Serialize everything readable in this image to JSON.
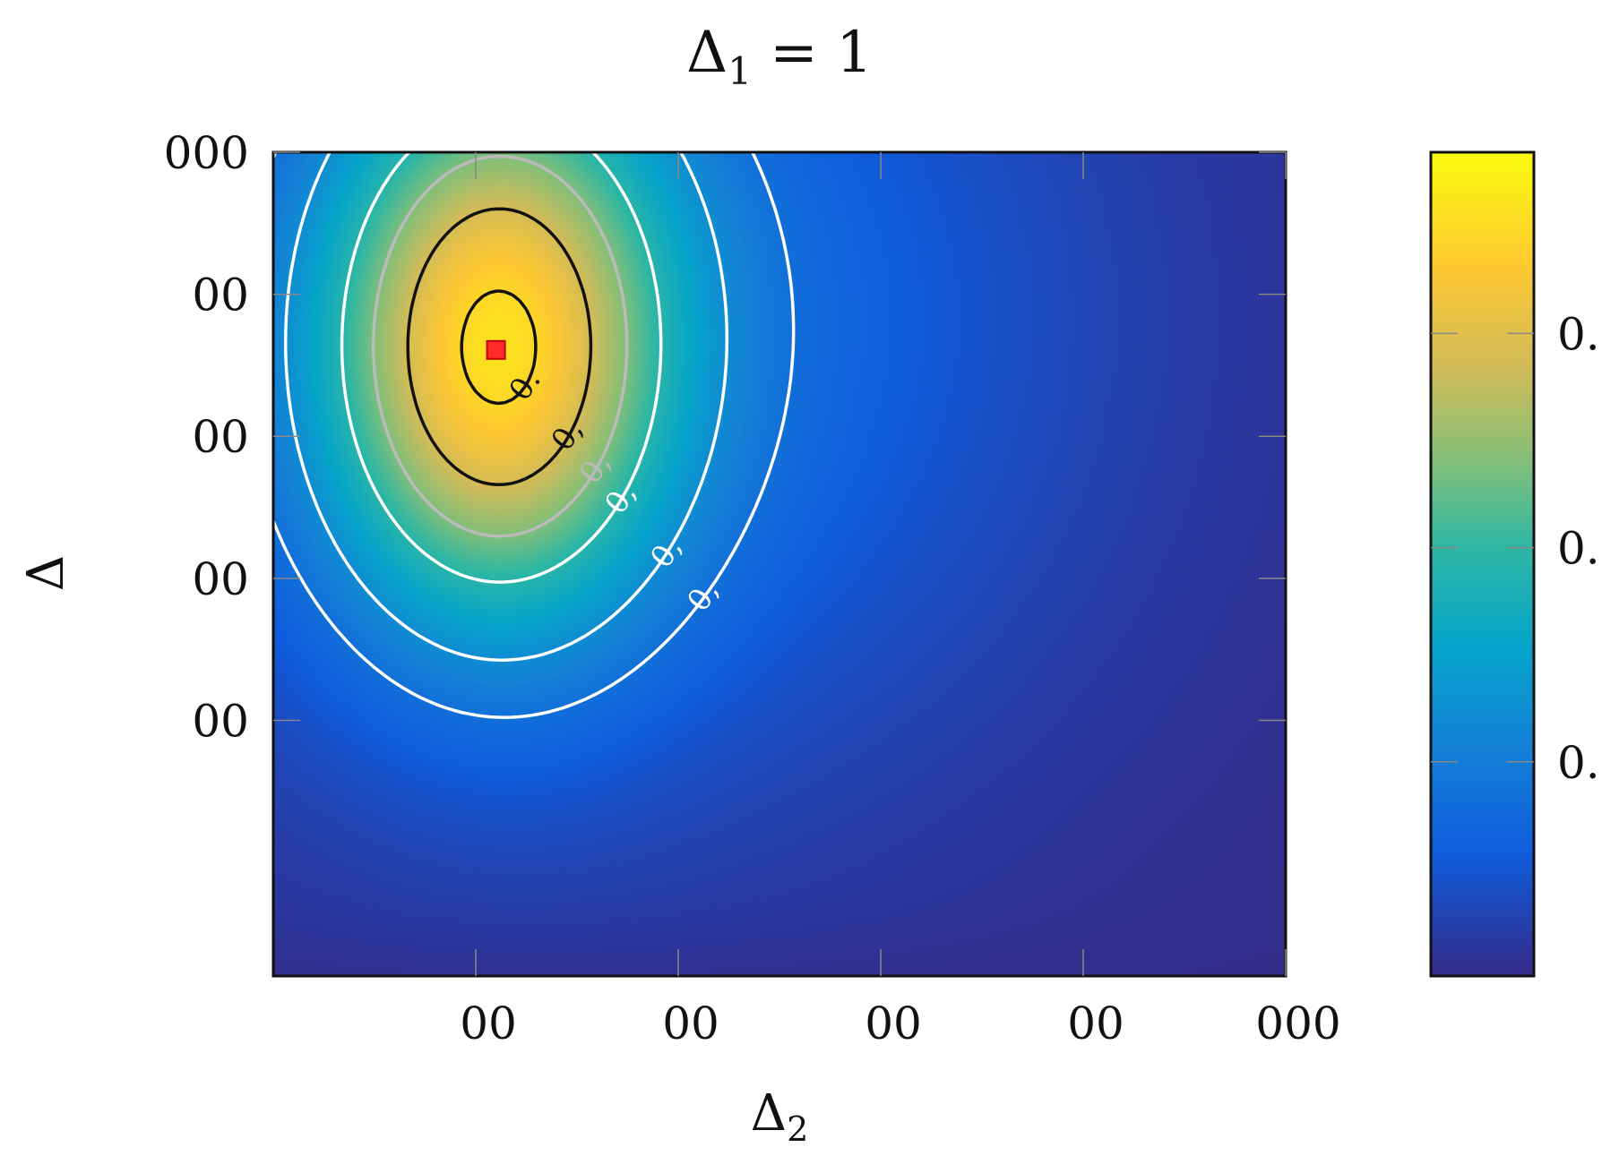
{
  "chart_data": {
    "type": "heatmap",
    "title": "Δ",
    "title_subscript": "1",
    "title_suffix": " = 1",
    "xlabel": "Δ",
    "xlabel_subscript": "2",
    "ylabel": "Δ",
    "x_ticks": [
      "00",
      "00",
      "00",
      "00",
      "000"
    ],
    "y_ticks": [
      "000",
      "00",
      "00",
      "00",
      "00"
    ],
    "colorbar_ticks": [
      "0.",
      "0.",
      "0."
    ],
    "colormap": [
      "#352a87",
      "#0f5cdd",
      "#1481d6",
      "#06a4ca",
      "#2eb7a4",
      "#87bf77",
      "#d1bb59",
      "#fec832",
      "#f9fb0e"
    ],
    "peak": {
      "x": 0.22,
      "y": 0.76
    },
    "contours": [
      {
        "level": 0.9,
        "color": "#111111",
        "label": "0."
      },
      {
        "level": 0.75,
        "color": "#111111",
        "label": "0,"
      },
      {
        "level": 0.62,
        "color": "#bbbbbb",
        "label": "0,"
      },
      {
        "level": 0.5,
        "color": "#ffffff",
        "label": "0,"
      },
      {
        "level": 0.32,
        "color": "#ffffff",
        "label": "0,"
      },
      {
        "level": 0.22,
        "color": "#ffffff",
        "label": "0,"
      }
    ],
    "marker": {
      "shape": "square",
      "color": "#ff2a2a",
      "x": 0.22,
      "y": 0.76
    }
  }
}
